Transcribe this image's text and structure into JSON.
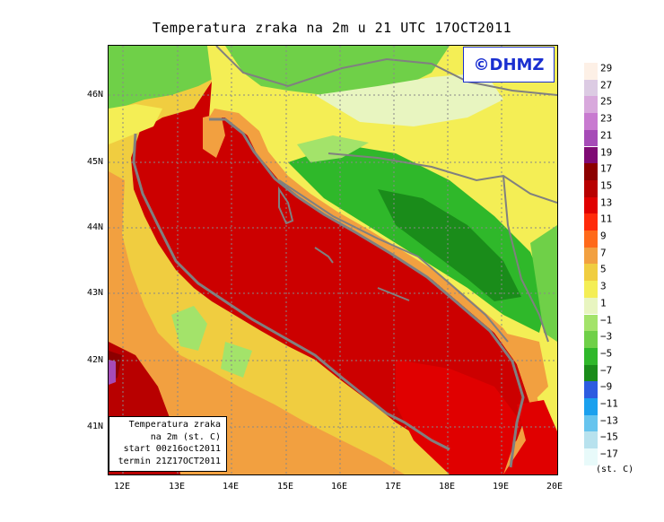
{
  "title": "Temperatura zraka na 2m u 21 UTC 17OCT2011",
  "logo": "©DHMZ",
  "latitude_labels": [
    "46N",
    "45N",
    "44N",
    "43N",
    "42N",
    "41N"
  ],
  "longitude_labels": [
    "12E",
    "13E",
    "14E",
    "15E",
    "16E",
    "17E",
    "18E",
    "19E",
    "20E"
  ],
  "info_box": {
    "line1": "Temperatura zraka",
    "line2": "na 2m (st. C)",
    "line3": "start 00z16oct2011",
    "line4": "termin 21Z17OCT2011"
  },
  "legend": {
    "labels": [
      "29",
      "27",
      "25",
      "23",
      "21",
      "19",
      "17",
      "15",
      "13",
      "11",
      "9",
      "7",
      "5",
      "3",
      "1",
      "−1",
      "−3",
      "−5",
      "−7",
      "−9",
      "−11",
      "−13",
      "−15",
      "−17"
    ],
    "colors": [
      "#fdf0e6",
      "#dccbe3",
      "#d8a8dc",
      "#c87ad0",
      "#a64bb7",
      "#7f0a74",
      "#8c0000",
      "#b80000",
      "#e00000",
      "#ff2a0a",
      "#ff6a1a",
      "#f2a040",
      "#f0cd40",
      "#f4ee55",
      "#e8f5c0",
      "#a3e36a",
      "#6fd048",
      "#2fb82a",
      "#1a8c1a",
      "#2d5ce0",
      "#1aa0ee",
      "#66c4ee",
      "#b8e2ee",
      "#e8fafa"
    ],
    "unit": "(st. C)"
  },
  "colors": {
    "sea": "#cc0000",
    "coast_line": "#808080",
    "grid": "#888888"
  }
}
